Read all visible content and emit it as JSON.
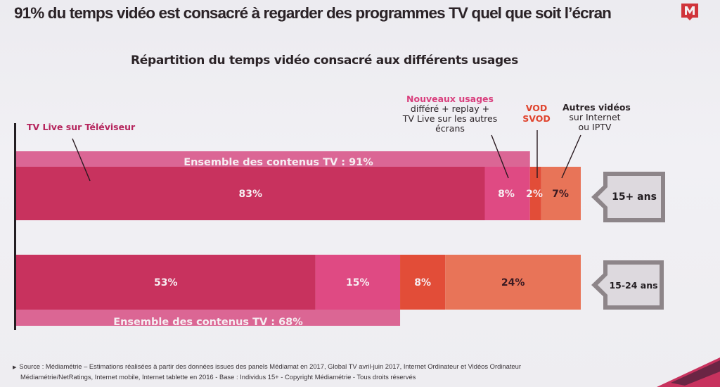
{
  "headline": "91% du temps vidéo est consacré à regarder des programmes TV quel que soit l’écran",
  "logo": {
    "icon": "mediametrie-m-logo",
    "letter": "M",
    "color": "#d0343b"
  },
  "chart_data": {
    "type": "bar",
    "orientation": "horizontal-stacked",
    "title": "Répartition du temps vidéo consacré aux différents usages",
    "unit": "%",
    "xlim": [
      0,
      100
    ],
    "categories": [
      "15+ ans",
      "15-24 ans"
    ],
    "series": [
      {
        "name": "TV Live sur Téléviseur",
        "values": [
          83,
          53
        ],
        "color": "#c8325e",
        "label_color": "#f7eef2"
      },
      {
        "name": "Nouveaux usages",
        "values": [
          8,
          15
        ],
        "color": "#df4a83",
        "label_color": "#f7eef2"
      },
      {
        "name": "VOD SVOD",
        "values": [
          2,
          8
        ],
        "color": "#e24d38",
        "label_color": "#f7eef2"
      },
      {
        "name": "Autres vidéos sur Internet ou IPTV",
        "values": [
          7,
          24
        ],
        "color": "#e87458",
        "label_color": "#3a1a22"
      }
    ],
    "value_labels": [
      [
        "83%",
        "8%",
        "2%",
        "7%"
      ],
      [
        "53%",
        "15%",
        "8%",
        "24%"
      ]
    ],
    "tv_content_totals": [
      {
        "category": "15+ ans",
        "value": 91,
        "label": "Ensemble des contenus TV : 91%",
        "position": "above"
      },
      {
        "category": "15-24 ans",
        "value": 68,
        "label": "Ensemble des contenus TV : 68%",
        "position": "below"
      }
    ],
    "tv_band_color": "#d95a8c",
    "annotations": [
      {
        "series": "TV Live sur Téléviseur",
        "title": "TV Live sur Téléviseur",
        "lines": []
      },
      {
        "series": "Nouveaux usages",
        "title": "Nouveaux usages",
        "lines": [
          "différé + replay +",
          "TV Live sur les autres",
          "écrans"
        ]
      },
      {
        "series": "VOD SVOD",
        "title": "VOD",
        "lines": [
          "SVOD"
        ]
      },
      {
        "series": "Autres vidéos sur Internet ou IPTV",
        "title": "Autres vidéos",
        "lines": [
          "sur Internet",
          "ou IPTV"
        ]
      }
    ],
    "legend": "none",
    "grid": false
  },
  "footnote": {
    "bullet": "▶",
    "line1": "Source : Médiamétrie – Estimations réalisées à partir des données issues des panels Médiamat en 2017, Global TV avril-juin 2017, Internet Ordinateur et Vidéos Ordinateur",
    "line2": "Médiamétrie/NetRatings, Internet mobile, Internet tablette en 2016 -  Base : Individus 15+ - Copyright Médiamétrie - Tous droits réservés"
  }
}
